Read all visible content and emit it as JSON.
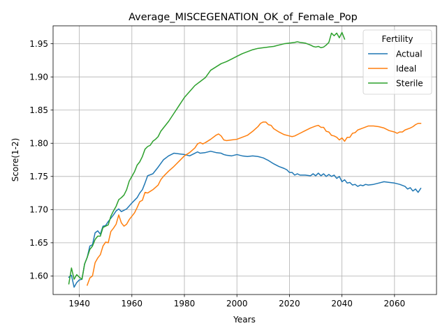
{
  "chart_data": {
    "type": "line",
    "title": "Average_MISCEGENATION_OK_of_Female_Pop",
    "xlabel": "Years",
    "ylabel": "Score(1-2)",
    "xlim": [
      1930,
      2076
    ],
    "ylim": [
      1.572,
      1.977
    ],
    "x_ticks": [
      1940,
      1960,
      1980,
      2000,
      2020,
      2040,
      2060
    ],
    "y_ticks": [
      1.6,
      1.65,
      1.7,
      1.75,
      1.8,
      1.85,
      1.9,
      1.95
    ],
    "x_tick_labels": [
      "1940",
      "1960",
      "1980",
      "2000",
      "2020",
      "2040",
      "2060"
    ],
    "y_tick_labels": [
      "1.60",
      "1.65",
      "1.70",
      "1.75",
      "1.80",
      "1.85",
      "1.90",
      "1.95"
    ],
    "grid": true,
    "legend": {
      "title": "Fertility",
      "position": "top-right"
    },
    "series": [
      {
        "name": "Actual",
        "color": "#1f77b4",
        "points": [
          [
            1936,
            1.598
          ],
          [
            1937,
            1.601
          ],
          [
            1938,
            1.583
          ],
          [
            1939,
            1.59
          ],
          [
            1940,
            1.594
          ],
          [
            1941,
            1.595
          ],
          [
            1942,
            1.618
          ],
          [
            1943,
            1.628
          ],
          [
            1944,
            1.645
          ],
          [
            1945,
            1.647
          ],
          [
            1946,
            1.665
          ],
          [
            1947,
            1.668
          ],
          [
            1948,
            1.663
          ],
          [
            1949,
            1.675
          ],
          [
            1950,
            1.676
          ],
          [
            1951,
            1.682
          ],
          [
            1952,
            1.687
          ],
          [
            1953,
            1.692
          ],
          [
            1954,
            1.698
          ],
          [
            1955,
            1.701
          ],
          [
            1956,
            1.697
          ],
          [
            1958,
            1.701
          ],
          [
            1960,
            1.71
          ],
          [
            1962,
            1.718
          ],
          [
            1963,
            1.725
          ],
          [
            1964,
            1.73
          ],
          [
            1965,
            1.74
          ],
          [
            1966,
            1.751
          ],
          [
            1968,
            1.754
          ],
          [
            1970,
            1.764
          ],
          [
            1972,
            1.775
          ],
          [
            1974,
            1.781
          ],
          [
            1976,
            1.785
          ],
          [
            1978,
            1.784
          ],
          [
            1980,
            1.783
          ],
          [
            1982,
            1.781
          ],
          [
            1984,
            1.785
          ],
          [
            1985,
            1.787
          ],
          [
            1986,
            1.785
          ],
          [
            1988,
            1.786
          ],
          [
            1990,
            1.788
          ],
          [
            1992,
            1.786
          ],
          [
            1994,
            1.785
          ],
          [
            1995,
            1.783
          ],
          [
            1996,
            1.782
          ],
          [
            1998,
            1.781
          ],
          [
            2000,
            1.783
          ],
          [
            2002,
            1.781
          ],
          [
            2004,
            1.78
          ],
          [
            2006,
            1.781
          ],
          [
            2008,
            1.78
          ],
          [
            2010,
            1.778
          ],
          [
            2012,
            1.774
          ],
          [
            2014,
            1.769
          ],
          [
            2016,
            1.765
          ],
          [
            2018,
            1.762
          ],
          [
            2019,
            1.76
          ],
          [
            2020,
            1.756
          ],
          [
            2021,
            1.756
          ],
          [
            2022,
            1.752
          ],
          [
            2023,
            1.754
          ],
          [
            2024,
            1.752
          ],
          [
            2026,
            1.752
          ],
          [
            2028,
            1.751
          ],
          [
            2029,
            1.754
          ],
          [
            2030,
            1.751
          ],
          [
            2031,
            1.755
          ],
          [
            2032,
            1.751
          ],
          [
            2033,
            1.754
          ],
          [
            2034,
            1.75
          ],
          [
            2035,
            1.753
          ],
          [
            2036,
            1.75
          ],
          [
            2037,
            1.752
          ],
          [
            2038,
            1.747
          ],
          [
            2039,
            1.75
          ],
          [
            2040,
            1.742
          ],
          [
            2041,
            1.745
          ],
          [
            2042,
            1.74
          ],
          [
            2043,
            1.741
          ],
          [
            2044,
            1.737
          ],
          [
            2045,
            1.738
          ],
          [
            2046,
            1.735
          ],
          [
            2047,
            1.737
          ],
          [
            2048,
            1.736
          ],
          [
            2049,
            1.738
          ],
          [
            2050,
            1.737
          ],
          [
            2052,
            1.738
          ],
          [
            2054,
            1.74
          ],
          [
            2056,
            1.742
          ],
          [
            2058,
            1.741
          ],
          [
            2060,
            1.74
          ],
          [
            2062,
            1.738
          ],
          [
            2064,
            1.735
          ],
          [
            2065,
            1.731
          ],
          [
            2066,
            1.733
          ],
          [
            2067,
            1.728
          ],
          [
            2068,
            1.731
          ],
          [
            2069,
            1.726
          ],
          [
            2070,
            1.732
          ]
        ]
      },
      {
        "name": "Ideal",
        "color": "#ff7f0e",
        "points": [
          [
            1943,
            1.586
          ],
          [
            1944,
            1.597
          ],
          [
            1945,
            1.6
          ],
          [
            1946,
            1.62
          ],
          [
            1947,
            1.627
          ],
          [
            1948,
            1.632
          ],
          [
            1949,
            1.645
          ],
          [
            1950,
            1.651
          ],
          [
            1951,
            1.65
          ],
          [
            1952,
            1.667
          ],
          [
            1953,
            1.672
          ],
          [
            1954,
            1.678
          ],
          [
            1955,
            1.692
          ],
          [
            1956,
            1.68
          ],
          [
            1957,
            1.675
          ],
          [
            1958,
            1.678
          ],
          [
            1959,
            1.685
          ],
          [
            1960,
            1.69
          ],
          [
            1961,
            1.695
          ],
          [
            1962,
            1.703
          ],
          [
            1963,
            1.712
          ],
          [
            1964,
            1.714
          ],
          [
            1965,
            1.726
          ],
          [
            1966,
            1.725
          ],
          [
            1968,
            1.73
          ],
          [
            1970,
            1.737
          ],
          [
            1971,
            1.745
          ],
          [
            1972,
            1.75
          ],
          [
            1974,
            1.758
          ],
          [
            1976,
            1.765
          ],
          [
            1978,
            1.773
          ],
          [
            1980,
            1.781
          ],
          [
            1982,
            1.786
          ],
          [
            1984,
            1.793
          ],
          [
            1985,
            1.799
          ],
          [
            1986,
            1.801
          ],
          [
            1987,
            1.799
          ],
          [
            1988,
            1.801
          ],
          [
            1990,
            1.806
          ],
          [
            1992,
            1.812
          ],
          [
            1993,
            1.814
          ],
          [
            1994,
            1.811
          ],
          [
            1995,
            1.805
          ],
          [
            1996,
            1.804
          ],
          [
            1998,
            1.805
          ],
          [
            2000,
            1.806
          ],
          [
            2002,
            1.809
          ],
          [
            2004,
            1.812
          ],
          [
            2006,
            1.818
          ],
          [
            2008,
            1.825
          ],
          [
            2009,
            1.83
          ],
          [
            2010,
            1.832
          ],
          [
            2011,
            1.832
          ],
          [
            2012,
            1.828
          ],
          [
            2013,
            1.827
          ],
          [
            2014,
            1.822
          ],
          [
            2016,
            1.817
          ],
          [
            2018,
            1.813
          ],
          [
            2020,
            1.811
          ],
          [
            2021,
            1.81
          ],
          [
            2022,
            1.811
          ],
          [
            2024,
            1.815
          ],
          [
            2026,
            1.819
          ],
          [
            2027,
            1.821
          ],
          [
            2028,
            1.823
          ],
          [
            2030,
            1.826
          ],
          [
            2031,
            1.827
          ],
          [
            2032,
            1.824
          ],
          [
            2033,
            1.824
          ],
          [
            2034,
            1.818
          ],
          [
            2035,
            1.817
          ],
          [
            2036,
            1.812
          ],
          [
            2037,
            1.811
          ],
          [
            2038,
            1.809
          ],
          [
            2039,
            1.805
          ],
          [
            2040,
            1.808
          ],
          [
            2041,
            1.803
          ],
          [
            2042,
            1.809
          ],
          [
            2043,
            1.809
          ],
          [
            2044,
            1.815
          ],
          [
            2045,
            1.816
          ],
          [
            2046,
            1.82
          ],
          [
            2048,
            1.823
          ],
          [
            2050,
            1.826
          ],
          [
            2052,
            1.826
          ],
          [
            2054,
            1.825
          ],
          [
            2056,
            1.823
          ],
          [
            2058,
            1.819
          ],
          [
            2060,
            1.817
          ],
          [
            2061,
            1.815
          ],
          [
            2062,
            1.817
          ],
          [
            2063,
            1.817
          ],
          [
            2064,
            1.82
          ],
          [
            2066,
            1.823
          ],
          [
            2067,
            1.825
          ],
          [
            2068,
            1.828
          ],
          [
            2069,
            1.83
          ],
          [
            2070,
            1.83
          ]
        ]
      },
      {
        "name": "Sterile",
        "color": "#2ca02c",
        "points": [
          [
            1936,
            1.588
          ],
          [
            1937,
            1.612
          ],
          [
            1938,
            1.595
          ],
          [
            1939,
            1.602
          ],
          [
            1940,
            1.598
          ],
          [
            1941,
            1.595
          ],
          [
            1942,
            1.618
          ],
          [
            1943,
            1.628
          ],
          [
            1944,
            1.64
          ],
          [
            1945,
            1.645
          ],
          [
            1946,
            1.655
          ],
          [
            1947,
            1.66
          ],
          [
            1948,
            1.66
          ],
          [
            1949,
            1.673
          ],
          [
            1950,
            1.675
          ],
          [
            1951,
            1.677
          ],
          [
            1952,
            1.69
          ],
          [
            1953,
            1.698
          ],
          [
            1954,
            1.705
          ],
          [
            1955,
            1.715
          ],
          [
            1956,
            1.718
          ],
          [
            1957,
            1.722
          ],
          [
            1958,
            1.73
          ],
          [
            1959,
            1.743
          ],
          [
            1960,
            1.75
          ],
          [
            1961,
            1.757
          ],
          [
            1962,
            1.767
          ],
          [
            1963,
            1.772
          ],
          [
            1964,
            1.78
          ],
          [
            1965,
            1.791
          ],
          [
            1966,
            1.795
          ],
          [
            1967,
            1.797
          ],
          [
            1968,
            1.803
          ],
          [
            1969,
            1.806
          ],
          [
            1970,
            1.81
          ],
          [
            1971,
            1.818
          ],
          [
            1972,
            1.823
          ],
          [
            1974,
            1.833
          ],
          [
            1976,
            1.845
          ],
          [
            1978,
            1.857
          ],
          [
            1980,
            1.869
          ],
          [
            1982,
            1.878
          ],
          [
            1984,
            1.887
          ],
          [
            1986,
            1.893
          ],
          [
            1988,
            1.899
          ],
          [
            1990,
            1.91
          ],
          [
            1992,
            1.915
          ],
          [
            1994,
            1.92
          ],
          [
            1996,
            1.923
          ],
          [
            1998,
            1.927
          ],
          [
            2000,
            1.931
          ],
          [
            2002,
            1.935
          ],
          [
            2004,
            1.938
          ],
          [
            2006,
            1.941
          ],
          [
            2008,
            1.943
          ],
          [
            2010,
            1.944
          ],
          [
            2012,
            1.945
          ],
          [
            2014,
            1.946
          ],
          [
            2016,
            1.948
          ],
          [
            2018,
            1.95
          ],
          [
            2020,
            1.951
          ],
          [
            2022,
            1.952
          ],
          [
            2023,
            1.953
          ],
          [
            2024,
            1.952
          ],
          [
            2026,
            1.951
          ],
          [
            2028,
            1.948
          ],
          [
            2029,
            1.946
          ],
          [
            2030,
            1.945
          ],
          [
            2031,
            1.946
          ],
          [
            2032,
            1.944
          ],
          [
            2033,
            1.945
          ],
          [
            2034,
            1.948
          ],
          [
            2035,
            1.952
          ],
          [
            2036,
            1.966
          ],
          [
            2037,
            1.962
          ],
          [
            2038,
            1.966
          ],
          [
            2039,
            1.959
          ],
          [
            2040,
            1.967
          ],
          [
            2041,
            1.957
          ]
        ]
      }
    ]
  }
}
